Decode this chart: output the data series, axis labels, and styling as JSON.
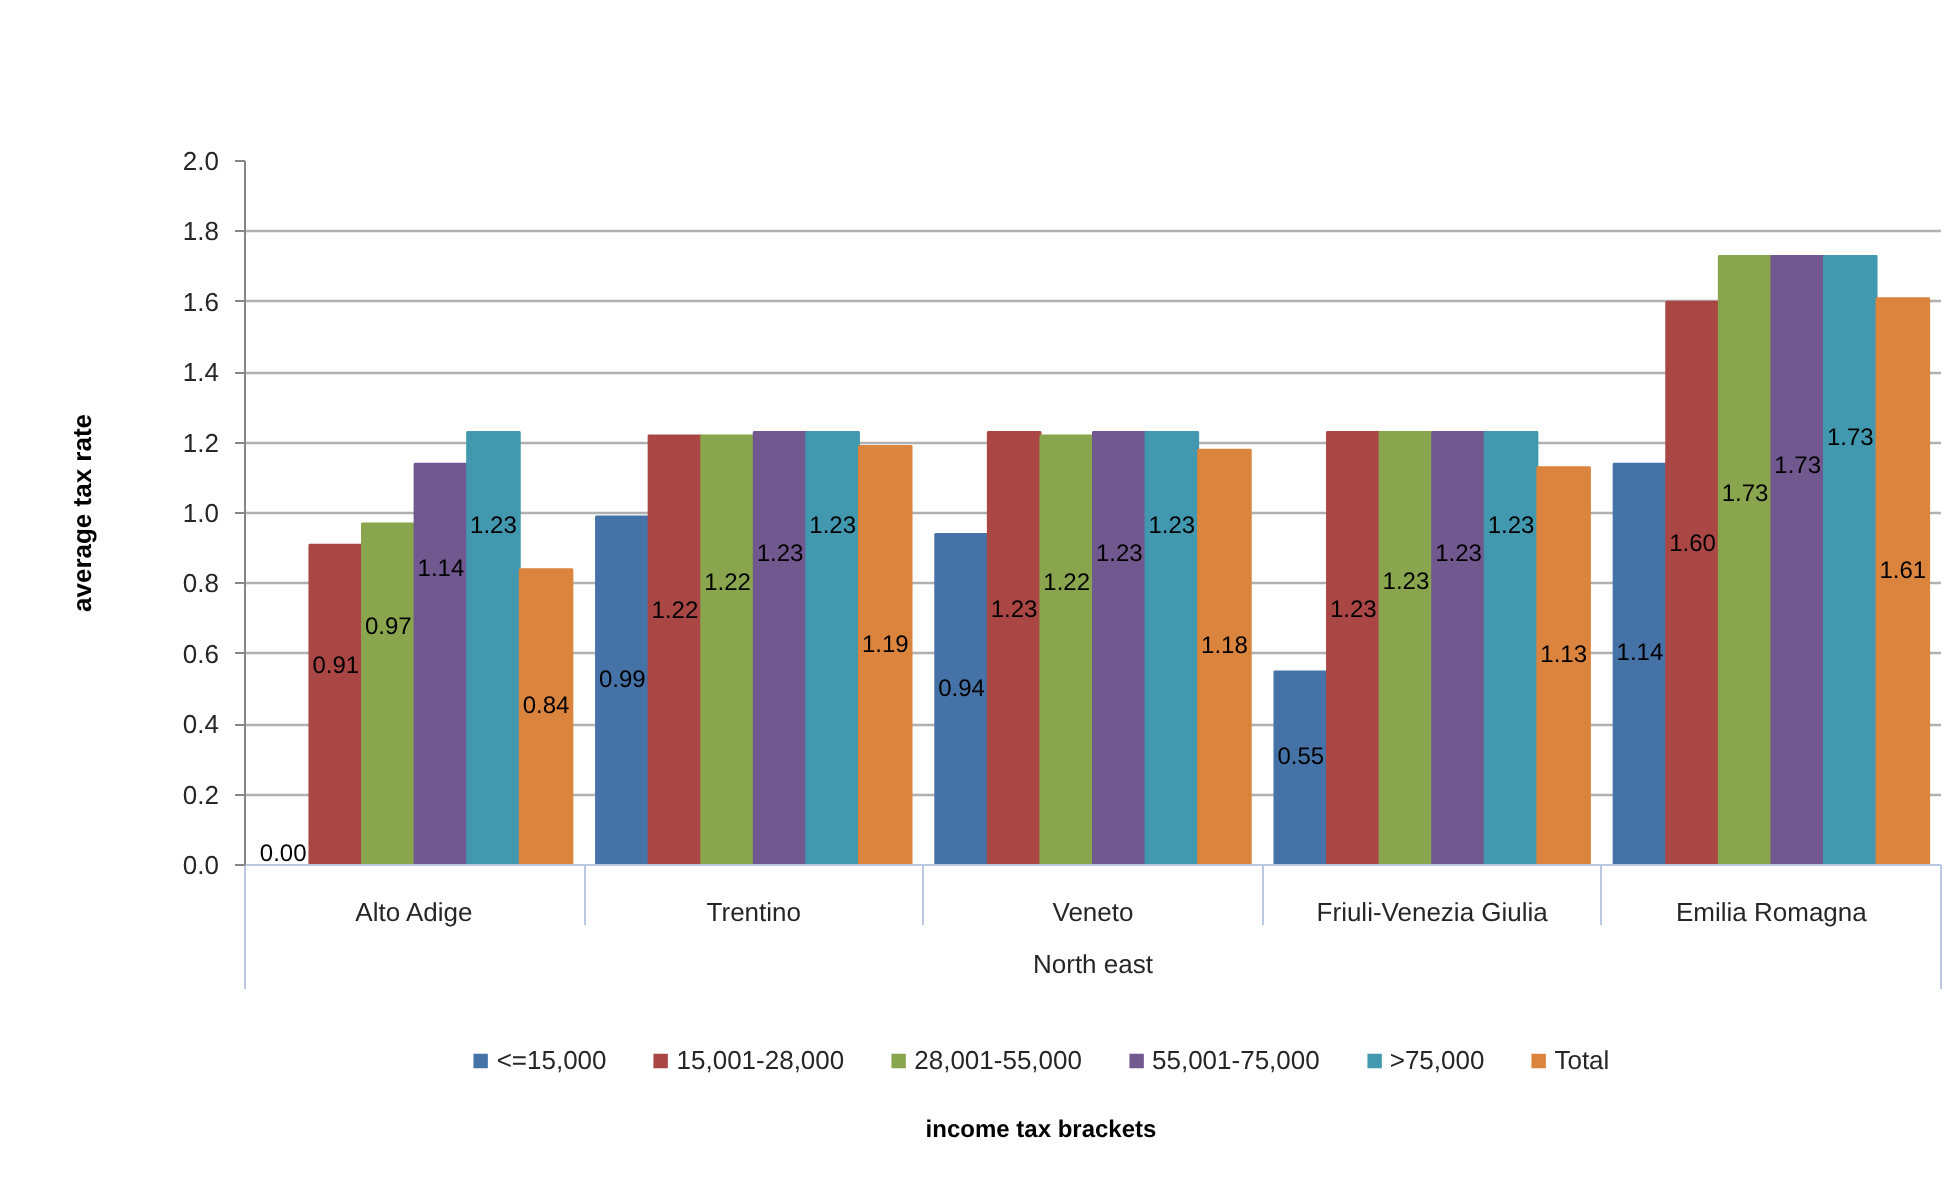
{
  "chart_data": {
    "type": "bar",
    "ylabel": "average tax rate",
    "annotations": [
      "North east",
      "income tax brackets"
    ],
    "categories": [
      "Alto Adige",
      "Trentino",
      "Veneto",
      "Friuli-Venezia Giulia",
      "Emilia Romagna"
    ],
    "series": [
      {
        "name": "<=15,000",
        "color": "#4572a7",
        "values": [
          0,
          0.99,
          0.94,
          0.55,
          1.14
        ],
        "value_labels": [
          "0.00",
          "0.99",
          "0.94",
          "0.55",
          "1.14"
        ]
      },
      {
        "name": "15,001-28,000",
        "color": "#aa4643",
        "values": [
          0.91,
          1.22,
          1.23,
          1.23,
          1.6
        ],
        "value_labels": [
          "0.91",
          "1.22",
          "1.23",
          "1.23",
          "1.60"
        ]
      },
      {
        "name": "28,001-55,000",
        "color": "#89a54e",
        "values": [
          0.97,
          1.22,
          1.22,
          1.23,
          1.73
        ],
        "value_labels": [
          "0.97",
          "1.22",
          "1.22",
          "1.23",
          "1.73"
        ]
      },
      {
        "name": "55,001-75,000",
        "color": "#71588f",
        "values": [
          1.14,
          1.23,
          1.23,
          1.23,
          1.73
        ],
        "value_labels": [
          "1.14",
          "1.23",
          "1.23",
          "1.23",
          "1.73"
        ]
      },
      {
        "name": ">75,000",
        "color": "#4198af",
        "values": [
          1.23,
          1.23,
          1.23,
          1.23,
          1.73
        ],
        "value_labels": [
          "1.23",
          "1.23",
          "1.23",
          "1.23",
          "1.73"
        ]
      },
      {
        "name": "Total",
        "color": "#db843d",
        "values": [
          0.84,
          1.19,
          1.18,
          1.13,
          1.61
        ],
        "value_labels": [
          "0.84",
          "1.19",
          "1.18",
          "1.13",
          "1.61"
        ]
      }
    ],
    "ylim": [
      0,
      2
    ],
    "yticks": [
      {
        "value": 0,
        "label": "0.0"
      },
      0.2,
      0.4,
      0.6,
      0.8,
      {
        "value": 1,
        "label": "1.0"
      },
      1.2,
      1.4,
      1.6,
      1.8,
      {
        "value": 2,
        "label": "2.0"
      }
    ],
    "grid": "y",
    "legend": "bottom"
  }
}
